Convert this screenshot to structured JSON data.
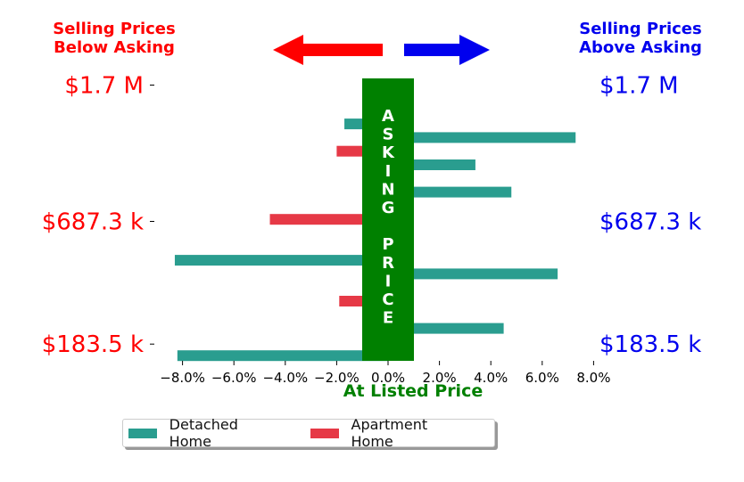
{
  "chart_data": {
    "type": "bar",
    "orientation": "horizontal",
    "xlabel": "At Listed Price",
    "xlim": [
      -9,
      9
    ],
    "xticks": [
      -8,
      -6,
      -4,
      -2,
      0,
      2,
      4,
      6,
      8
    ],
    "xtick_labels": [
      "−8.0%",
      "−6.0%",
      "−4.0%",
      "−2.0%",
      "0.0%",
      "2.0%",
      "4.0%",
      "6.0%",
      "8.0%"
    ],
    "left_heading": "Selling Prices\nBelow Asking",
    "right_heading": "Selling Prices\nAbove Asking",
    "center_band_label": "ASKING  PRICE",
    "price_labels": [
      "$1.7 M",
      "$687.3 k",
      "$183.5 k"
    ],
    "price_label_rows": [
      0,
      10,
      19
    ],
    "series": [
      {
        "name": "Detached Home",
        "color": "#2a9d8f",
        "rows": [
          0,
          1,
          2,
          3,
          5,
          6,
          7,
          8,
          10,
          12,
          13,
          16,
          17,
          18,
          19
        ],
        "values": [
          0.2,
          0.2,
          -1.7,
          7.3,
          3.4,
          0.2,
          4.8,
          0.2,
          0.2,
          -8.3,
          6.6,
          0.2,
          4.5,
          0.2,
          -8.2
        ]
      },
      {
        "name": "Apartment Home",
        "color": "#e63946",
        "rows": [
          4,
          9,
          11,
          14,
          15
        ],
        "values": [
          -2.0,
          -4.6,
          0.2,
          0.2,
          -1.9
        ]
      }
    ],
    "row_count": 20,
    "colors": {
      "below": "#ff0000",
      "above": "#0000ee",
      "band": "#008000"
    }
  },
  "legend": {
    "items": [
      {
        "label": "Detached Home",
        "color": "#2a9d8f"
      },
      {
        "label": "Apartment Home",
        "color": "#e63946"
      }
    ]
  }
}
